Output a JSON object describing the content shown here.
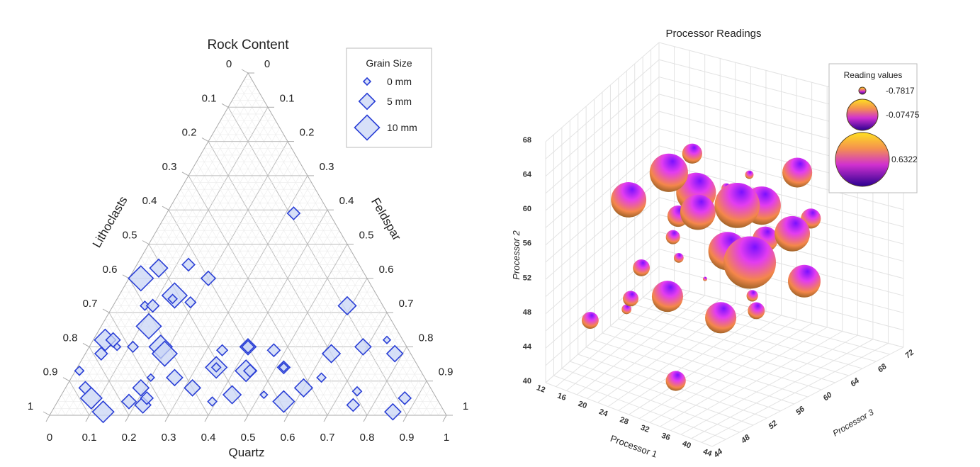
{
  "chart_data": [
    {
      "type": "scatter",
      "subtype": "ternary",
      "title": "Rock Content",
      "axes": {
        "left": "Lithoclasts",
        "right": "Feldspar",
        "bottom": "Quartz"
      },
      "ticks": [
        "0",
        "0.1",
        "0.2",
        "0.3",
        "0.4",
        "0.5",
        "0.6",
        "0.7",
        "0.8",
        "0.9",
        "1"
      ],
      "grid": true,
      "marker": "diamond",
      "colors": {
        "fill": "#c9d6f5",
        "stroke": "#2a3fd6"
      },
      "legend": {
        "title": "Grain Size",
        "placement": "top-right",
        "entries": [
          {
            "label": "0 mm",
            "size": 0
          },
          {
            "label": "5 mm",
            "size": 5
          },
          {
            "label": "10 mm",
            "size": 10
          }
        ]
      },
      "points_columns": [
        "quartz",
        "feldspar",
        "lithoclasts",
        "grain_size_mm"
      ],
      "points": [
        [
          0.32,
          0.59,
          0.09,
          3
        ],
        [
          0.06,
          0.43,
          0.51,
          6
        ],
        [
          0.13,
          0.44,
          0.43,
          3
        ],
        [
          0.03,
          0.4,
          0.57,
          10
        ],
        [
          0.2,
          0.4,
          0.4,
          4
        ],
        [
          0.14,
          0.35,
          0.51,
          10
        ],
        [
          0.14,
          0.34,
          0.52,
          1
        ],
        [
          0.19,
          0.33,
          0.48,
          2
        ],
        [
          0.08,
          0.32,
          0.6,
          1
        ],
        [
          0.1,
          0.32,
          0.58,
          3
        ],
        [
          0.59,
          0.32,
          0.09,
          6
        ],
        [
          0.12,
          0.26,
          0.62,
          10
        ],
        [
          0.03,
          0.22,
          0.75,
          8
        ],
        [
          0.05,
          0.22,
          0.73,
          4
        ],
        [
          0.07,
          0.2,
          0.73,
          0
        ],
        [
          0.11,
          0.2,
          0.69,
          2
        ],
        [
          0.04,
          0.18,
          0.78,
          3
        ],
        [
          0.18,
          0.2,
          0.62,
          9
        ],
        [
          0.2,
          0.18,
          0.62,
          10
        ],
        [
          0.34,
          0.19,
          0.47,
          2
        ],
        [
          0.4,
          0.2,
          0.4,
          5
        ],
        [
          0.4,
          0.2,
          0.4,
          3
        ],
        [
          0.47,
          0.19,
          0.34,
          3
        ],
        [
          0.62,
          0.18,
          0.2,
          6
        ],
        [
          0.69,
          0.2,
          0.11,
          5
        ],
        [
          0.74,
          0.22,
          0.04,
          0
        ],
        [
          0.78,
          0.18,
          0.04,
          5
        ],
        [
          0.01,
          0.13,
          0.86,
          1
        ],
        [
          0.35,
          0.14,
          0.51,
          8
        ],
        [
          0.35,
          0.14,
          0.51,
          1
        ],
        [
          0.43,
          0.13,
          0.44,
          8
        ],
        [
          0.44,
          0.13,
          0.43,
          3
        ],
        [
          0.52,
          0.14,
          0.34,
          3
        ],
        [
          0.52,
          0.14,
          0.34,
          1
        ],
        [
          0.26,
          0.11,
          0.63,
          5
        ],
        [
          0.2,
          0.11,
          0.69,
          0
        ],
        [
          0.63,
          0.11,
          0.26,
          1
        ],
        [
          0.05,
          0.08,
          0.87,
          3
        ],
        [
          0.08,
          0.05,
          0.87,
          8
        ],
        [
          0.19,
          0.08,
          0.73,
          5
        ],
        [
          0.18,
          0.04,
          0.78,
          4
        ],
        [
          0.22,
          0.03,
          0.75,
          5
        ],
        [
          0.22,
          0.05,
          0.73,
          3
        ],
        [
          0.32,
          0.08,
          0.6,
          5
        ],
        [
          0.43,
          0.06,
          0.51,
          6
        ],
        [
          0.51,
          0.06,
          0.43,
          0
        ],
        [
          0.6,
          0.08,
          0.32,
          6
        ],
        [
          0.57,
          0.04,
          0.39,
          8
        ],
        [
          0.74,
          0.07,
          0.19,
          1
        ],
        [
          0.75,
          0.03,
          0.22,
          3
        ],
        [
          0.87,
          0.05,
          0.08,
          3
        ],
        [
          0.86,
          0.01,
          0.13,
          5
        ],
        [
          0.13,
          0.01,
          0.86,
          8
        ],
        [
          0.39,
          0.04,
          0.57,
          1
        ]
      ]
    },
    {
      "type": "scatter",
      "subtype": "3d-bubble",
      "title": "Processor Readings",
      "xlabel": "Processor 1",
      "ylabel": "Processor 2",
      "zlabel": "Processor 3",
      "xlim": [
        12,
        44
      ],
      "ylim": [
        40,
        68
      ],
      "zlim": [
        44,
        72
      ],
      "xticks": [
        12,
        16,
        20,
        24,
        28,
        32,
        36,
        40,
        44
      ],
      "yticks": [
        40,
        44,
        48,
        52,
        56,
        60,
        64,
        68
      ],
      "zticks": [
        44,
        48,
        52,
        56,
        60,
        64,
        68,
        72
      ],
      "grid": true,
      "colors": {
        "top": "#7a10ff",
        "mid": "#e23cf0",
        "bottom": "#f4874a",
        "shadow": "#8a5a20"
      },
      "legend": {
        "title": "Reading values",
        "placement": "top-right",
        "entries": [
          {
            "label": "-0.7817",
            "value": -0.7817
          },
          {
            "label": "-0.07475",
            "value": -0.07475
          },
          {
            "label": "0.6322",
            "value": 0.6322
          }
        ]
      },
      "points_columns": [
        "processor_1",
        "processor_2",
        "processor_3",
        "reading_value"
      ],
      "points": [
        [
          26.0,
          64.1,
          58.0,
          -0.32
        ],
        [
          24.6,
          62.7,
          55.2,
          0.22
        ],
        [
          34.5,
          60.4,
          66.4,
          -0.03
        ],
        [
          27.8,
          58.6,
          66.4,
          -0.66
        ],
        [
          22.6,
          61.4,
          49.6,
          0.13
        ],
        [
          26.6,
          59.7,
          58.0,
          0.26
        ],
        [
          28.9,
          59.6,
          60.8,
          -0.62
        ],
        [
          33.0,
          59.7,
          58.0,
          0.42
        ],
        [
          34.2,
          58.8,
          60.8,
          0.22
        ],
        [
          30.0,
          57.1,
          63.6,
          -0.2
        ],
        [
          29.3,
          59.2,
          55.2,
          0.13
        ],
        [
          26.1,
          58.0,
          55.2,
          -0.28
        ],
        [
          36.4,
          55.5,
          66.4,
          -0.32
        ],
        [
          38.8,
          56.6,
          60.8,
          0.13
        ],
        [
          23.0,
          53.7,
          58.0,
          -0.49
        ],
        [
          32.3,
          53.3,
          63.6,
          -0.16
        ],
        [
          34.1,
          55.8,
          55.2,
          0.22
        ],
        [
          37.7,
          55.3,
          55.2,
          0.63
        ],
        [
          23.9,
          51.5,
          58.0,
          -0.62
        ],
        [
          22.4,
          52.3,
          52.4,
          -0.41
        ],
        [
          28.0,
          50.0,
          58.0,
          -0.78
        ],
        [
          40.6,
          51.5,
          60.8,
          0.05
        ],
        [
          26.8,
          50.0,
          52.4,
          0.01
        ],
        [
          20.6,
          48.3,
          52.4,
          -0.45
        ],
        [
          32.8,
          48.0,
          60.8,
          -0.57
        ],
        [
          19.9,
          46.9,
          52.4,
          -0.62
        ],
        [
          33.4,
          46.4,
          60.8,
          -0.41
        ],
        [
          33.0,
          47.8,
          55.2,
          0.01
        ],
        [
          18.1,
          47.5,
          46.8,
          -0.41
        ],
        [
          28.2,
          40.5,
          52.4,
          -0.32
        ]
      ]
    }
  ]
}
